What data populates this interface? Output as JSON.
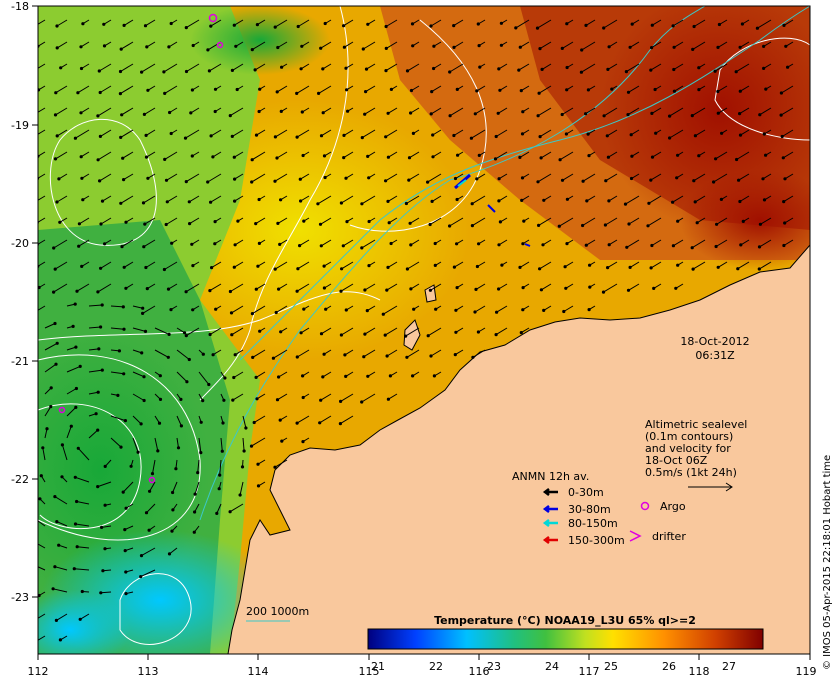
{
  "map": {
    "date": "18-Oct-2012",
    "time": "06:31Z",
    "lon_ticks": [
      "112",
      "113",
      "114",
      "115",
      "116",
      "117",
      "118",
      "119"
    ],
    "lat_ticks": [
      "-18",
      "-19",
      "-20",
      "-21",
      "-22",
      "-23"
    ],
    "altimetry_note": [
      "Altimetric sealevel",
      "(0.1m contours)",
      "and velocity for",
      "18-Oct 06Z",
      "0.5m/s (1kt 24h)"
    ],
    "anmn_title": "ANMN 12h av.",
    "depth_legend": [
      {
        "label": "0-30m",
        "color": "#000000"
      },
      {
        "label": "30-80m",
        "color": "#0000e0"
      },
      {
        "label": "80-150m",
        "color": "#00d8d8"
      },
      {
        "label": "150-300m",
        "color": "#e00000"
      }
    ],
    "argo_label": "Argo",
    "drifter_label": "drifter",
    "isobath_label": "200  1000m",
    "colorbar_title": "Temperature (°C) NOAA19_L3U 65% ql>=2",
    "colorbar_ticks": [
      "21",
      "22",
      "23",
      "24",
      "25",
      "26",
      "27"
    ],
    "credit": "© IMOS 05-Apr-2015 22:18:01 Hobart time",
    "colors": {
      "land": "#f9c89d",
      "argo": "#e000e0",
      "isobath": "#3cc8c8",
      "contour": "#ffffff"
    }
  }
}
